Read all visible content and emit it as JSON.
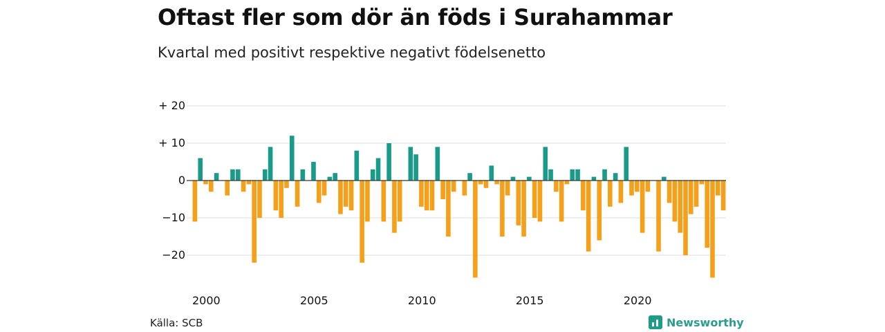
{
  "header": {
    "title": "Oftast fler som dör än föds i Surahammar",
    "subtitle": "Kvartal med positivt respektive negativt födelsenetto"
  },
  "footer": {
    "source": "Källa: SCB",
    "brand": "Newsworthy",
    "brand_icon": "newsworthy-logo-icon"
  },
  "colors": {
    "positive": "#1a9a88",
    "negative": "#f5a01a",
    "grid": "#dddddd",
    "zero_line": "#333333"
  },
  "chart_data": {
    "type": "bar",
    "title": "Oftast fler som dör än föds i Surahammar",
    "subtitle": "Kvartal med positivt respektive negativt födelsenetto",
    "ylim": [
      -27,
      22
    ],
    "yticks": [
      {
        "value": 20,
        "label": "+ 20"
      },
      {
        "value": 10,
        "label": "+ 10"
      },
      {
        "value": 0,
        "label": "0"
      },
      {
        "value": -10,
        "label": "−10"
      },
      {
        "value": -20,
        "label": "−20"
      }
    ],
    "xticks": [
      {
        "value": 2000,
        "label": "2000"
      },
      {
        "value": 2005,
        "label": "2005"
      },
      {
        "value": 2010,
        "label": "2010"
      },
      {
        "value": 2015,
        "label": "2015"
      },
      {
        "value": 2020,
        "label": "2020"
      }
    ],
    "start_year": 2000,
    "grid": true,
    "values": [
      -11,
      6,
      -1,
      -3,
      2,
      0,
      -4,
      3,
      3,
      -3,
      -1,
      -22,
      -10,
      3,
      9,
      -8,
      -10,
      -2,
      12,
      -7,
      3,
      0,
      5,
      -6,
      -4,
      1,
      2,
      -9,
      -7,
      -8,
      8,
      -22,
      -11,
      3,
      6,
      -11,
      10,
      -14,
      -11,
      0,
      9,
      7,
      -7,
      -8,
      -8,
      9,
      -5,
      -15,
      -3,
      0,
      -4,
      2,
      -26,
      -1,
      -2,
      4,
      -1,
      -15,
      -4,
      1,
      -12,
      -15,
      1,
      -10,
      -11,
      9,
      3,
      -3,
      -11,
      -1,
      3,
      3,
      -8,
      -19,
      1,
      -16,
      3,
      -7,
      2,
      -6,
      9,
      -4,
      -3,
      -14,
      -3,
      0,
      -19,
      1,
      -6,
      -11,
      -14,
      -20,
      -9,
      -7,
      -1,
      -18,
      -26,
      -4,
      -8
    ]
  }
}
